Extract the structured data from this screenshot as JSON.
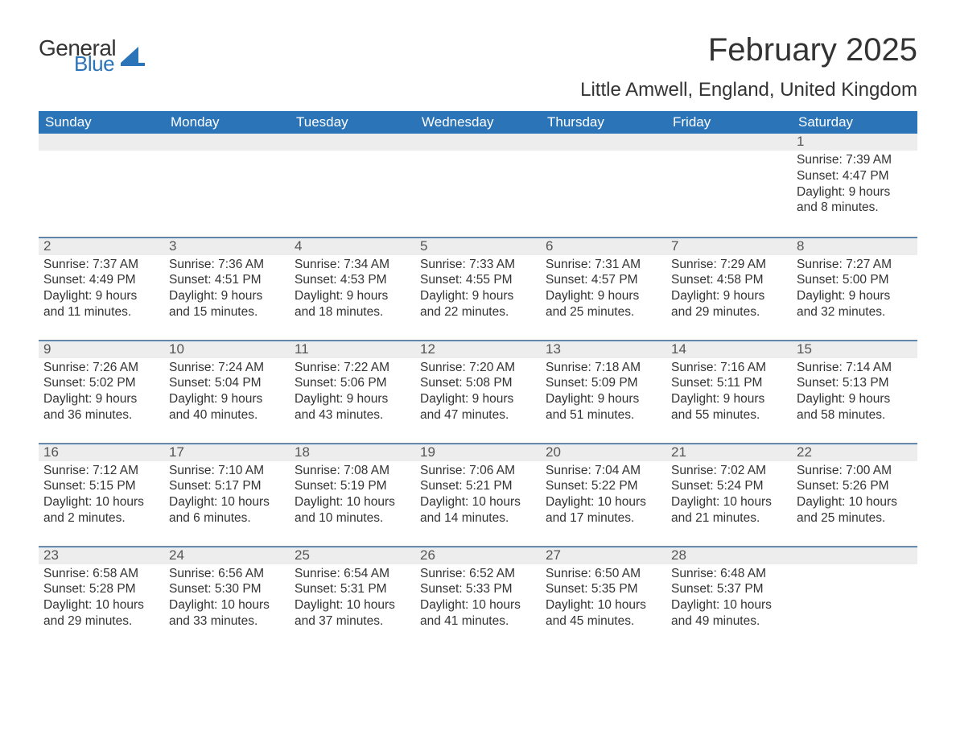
{
  "brand": {
    "word1": "General",
    "word2": "Blue"
  },
  "colors": {
    "brand_blue": "#2b74b8",
    "header_bg": "#2b74b8",
    "daynum_bg": "#ededed",
    "text": "#333333",
    "muted": "#555555",
    "separator": "#98999a"
  },
  "title": "February 2025",
  "location": "Little Amwell, England, United Kingdom",
  "day_headers": [
    "Sunday",
    "Monday",
    "Tuesday",
    "Wednesday",
    "Thursday",
    "Friday",
    "Saturday"
  ],
  "weeks": [
    [
      {
        "day": "",
        "sunrise": "",
        "sunset": "",
        "daylight": ""
      },
      {
        "day": "",
        "sunrise": "",
        "sunset": "",
        "daylight": ""
      },
      {
        "day": "",
        "sunrise": "",
        "sunset": "",
        "daylight": ""
      },
      {
        "day": "",
        "sunrise": "",
        "sunset": "",
        "daylight": ""
      },
      {
        "day": "",
        "sunrise": "",
        "sunset": "",
        "daylight": ""
      },
      {
        "day": "",
        "sunrise": "",
        "sunset": "",
        "daylight": ""
      },
      {
        "day": "1",
        "sunrise": "Sunrise: 7:39 AM",
        "sunset": "Sunset: 4:47 PM",
        "daylight": "Daylight: 9 hours and 8 minutes."
      }
    ],
    [
      {
        "day": "2",
        "sunrise": "Sunrise: 7:37 AM",
        "sunset": "Sunset: 4:49 PM",
        "daylight": "Daylight: 9 hours and 11 minutes."
      },
      {
        "day": "3",
        "sunrise": "Sunrise: 7:36 AM",
        "sunset": "Sunset: 4:51 PM",
        "daylight": "Daylight: 9 hours and 15 minutes."
      },
      {
        "day": "4",
        "sunrise": "Sunrise: 7:34 AM",
        "sunset": "Sunset: 4:53 PM",
        "daylight": "Daylight: 9 hours and 18 minutes."
      },
      {
        "day": "5",
        "sunrise": "Sunrise: 7:33 AM",
        "sunset": "Sunset: 4:55 PM",
        "daylight": "Daylight: 9 hours and 22 minutes."
      },
      {
        "day": "6",
        "sunrise": "Sunrise: 7:31 AM",
        "sunset": "Sunset: 4:57 PM",
        "daylight": "Daylight: 9 hours and 25 minutes."
      },
      {
        "day": "7",
        "sunrise": "Sunrise: 7:29 AM",
        "sunset": "Sunset: 4:58 PM",
        "daylight": "Daylight: 9 hours and 29 minutes."
      },
      {
        "day": "8",
        "sunrise": "Sunrise: 7:27 AM",
        "sunset": "Sunset: 5:00 PM",
        "daylight": "Daylight: 9 hours and 32 minutes."
      }
    ],
    [
      {
        "day": "9",
        "sunrise": "Sunrise: 7:26 AM",
        "sunset": "Sunset: 5:02 PM",
        "daylight": "Daylight: 9 hours and 36 minutes."
      },
      {
        "day": "10",
        "sunrise": "Sunrise: 7:24 AM",
        "sunset": "Sunset: 5:04 PM",
        "daylight": "Daylight: 9 hours and 40 minutes."
      },
      {
        "day": "11",
        "sunrise": "Sunrise: 7:22 AM",
        "sunset": "Sunset: 5:06 PM",
        "daylight": "Daylight: 9 hours and 43 minutes."
      },
      {
        "day": "12",
        "sunrise": "Sunrise: 7:20 AM",
        "sunset": "Sunset: 5:08 PM",
        "daylight": "Daylight: 9 hours and 47 minutes."
      },
      {
        "day": "13",
        "sunrise": "Sunrise: 7:18 AM",
        "sunset": "Sunset: 5:09 PM",
        "daylight": "Daylight: 9 hours and 51 minutes."
      },
      {
        "day": "14",
        "sunrise": "Sunrise: 7:16 AM",
        "sunset": "Sunset: 5:11 PM",
        "daylight": "Daylight: 9 hours and 55 minutes."
      },
      {
        "day": "15",
        "sunrise": "Sunrise: 7:14 AM",
        "sunset": "Sunset: 5:13 PM",
        "daylight": "Daylight: 9 hours and 58 minutes."
      }
    ],
    [
      {
        "day": "16",
        "sunrise": "Sunrise: 7:12 AM",
        "sunset": "Sunset: 5:15 PM",
        "daylight": "Daylight: 10 hours and 2 minutes."
      },
      {
        "day": "17",
        "sunrise": "Sunrise: 7:10 AM",
        "sunset": "Sunset: 5:17 PM",
        "daylight": "Daylight: 10 hours and 6 minutes."
      },
      {
        "day": "18",
        "sunrise": "Sunrise: 7:08 AM",
        "sunset": "Sunset: 5:19 PM",
        "daylight": "Daylight: 10 hours and 10 minutes."
      },
      {
        "day": "19",
        "sunrise": "Sunrise: 7:06 AM",
        "sunset": "Sunset: 5:21 PM",
        "daylight": "Daylight: 10 hours and 14 minutes."
      },
      {
        "day": "20",
        "sunrise": "Sunrise: 7:04 AM",
        "sunset": "Sunset: 5:22 PM",
        "daylight": "Daylight: 10 hours and 17 minutes."
      },
      {
        "day": "21",
        "sunrise": "Sunrise: 7:02 AM",
        "sunset": "Sunset: 5:24 PM",
        "daylight": "Daylight: 10 hours and 21 minutes."
      },
      {
        "day": "22",
        "sunrise": "Sunrise: 7:00 AM",
        "sunset": "Sunset: 5:26 PM",
        "daylight": "Daylight: 10 hours and 25 minutes."
      }
    ],
    [
      {
        "day": "23",
        "sunrise": "Sunrise: 6:58 AM",
        "sunset": "Sunset: 5:28 PM",
        "daylight": "Daylight: 10 hours and 29 minutes."
      },
      {
        "day": "24",
        "sunrise": "Sunrise: 6:56 AM",
        "sunset": "Sunset: 5:30 PM",
        "daylight": "Daylight: 10 hours and 33 minutes."
      },
      {
        "day": "25",
        "sunrise": "Sunrise: 6:54 AM",
        "sunset": "Sunset: 5:31 PM",
        "daylight": "Daylight: 10 hours and 37 minutes."
      },
      {
        "day": "26",
        "sunrise": "Sunrise: 6:52 AM",
        "sunset": "Sunset: 5:33 PM",
        "daylight": "Daylight: 10 hours and 41 minutes."
      },
      {
        "day": "27",
        "sunrise": "Sunrise: 6:50 AM",
        "sunset": "Sunset: 5:35 PM",
        "daylight": "Daylight: 10 hours and 45 minutes."
      },
      {
        "day": "28",
        "sunrise": "Sunrise: 6:48 AM",
        "sunset": "Sunset: 5:37 PM",
        "daylight": "Daylight: 10 hours and 49 minutes."
      },
      {
        "day": "",
        "sunrise": "",
        "sunset": "",
        "daylight": ""
      }
    ]
  ]
}
